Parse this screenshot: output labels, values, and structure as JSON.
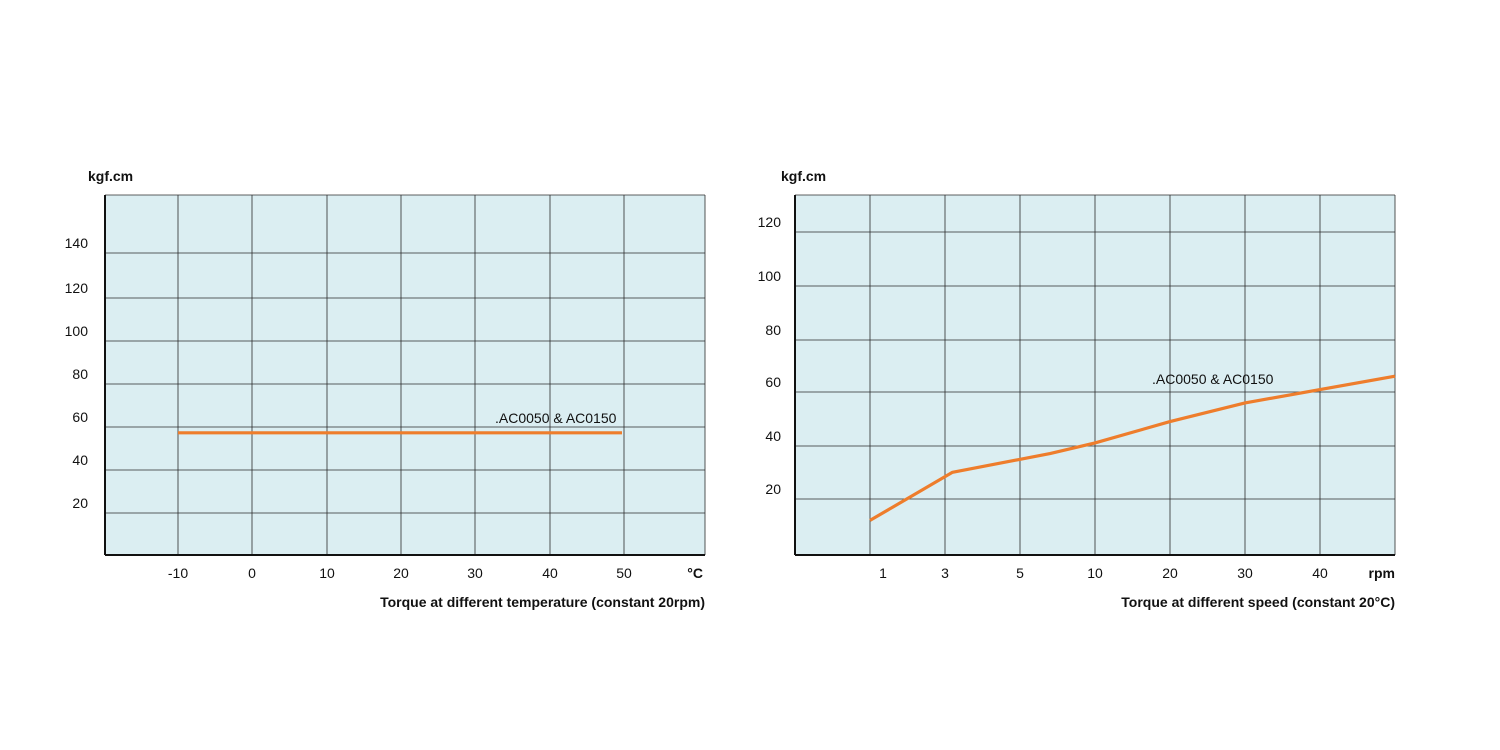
{
  "colors": {
    "plot_bg": "#dbeef2",
    "grid": "#2b2b2b",
    "axis": "#111111",
    "series": "#ee7d2c"
  },
  "chart_data": [
    {
      "type": "line",
      "y_unit": "kgf.cm",
      "x_unit": "°C",
      "caption": "Torque at different temperature (constant 20rpm)",
      "x_ticks": [
        "-10",
        "0",
        "10",
        "20",
        "30",
        "40",
        "50"
      ],
      "y_ticks": [
        "20",
        "40",
        "60",
        "80",
        "100",
        "120",
        "140"
      ],
      "ylim": [
        0,
        160
      ],
      "grid": true,
      "series": [
        {
          "name": ".AC0050 & AC0150",
          "x": [
            -10,
            50
          ],
          "y": [
            57,
            57
          ]
        }
      ]
    },
    {
      "type": "line",
      "y_unit": "kgf.cm",
      "x_unit": "rpm",
      "caption": "Torque at different speed (constant 20°C)",
      "x_ticks": [
        "1",
        "3",
        "5",
        "10",
        "20",
        "30",
        "40"
      ],
      "y_ticks": [
        "20",
        "40",
        "60",
        "80",
        "100",
        "120"
      ],
      "ylim": [
        0,
        130
      ],
      "grid": true,
      "series": [
        {
          "name": ".AC0050 & AC0150",
          "x": [
            1,
            3.2,
            7,
            10,
            20,
            30,
            50
          ],
          "y": [
            12,
            30,
            37,
            41,
            49,
            56,
            66
          ]
        }
      ]
    }
  ]
}
